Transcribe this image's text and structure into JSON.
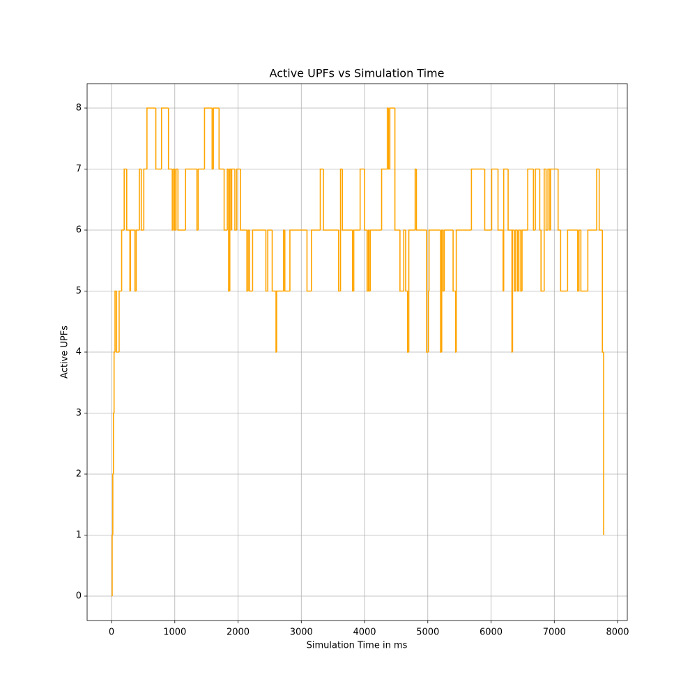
{
  "chart_data": {
    "type": "line",
    "step": "post",
    "title": "Active UPFs vs Simulation Time",
    "x_label": "Simulation Time in ms",
    "y_label": "Active UPFs",
    "x": [
      0,
      10,
      20,
      30,
      40,
      55,
      80,
      120,
      160,
      200,
      240,
      290,
      300,
      370,
      390,
      440,
      470,
      510,
      560,
      700,
      790,
      900,
      960,
      980,
      1000,
      1020,
      1050,
      1170,
      1350,
      1370,
      1470,
      1590,
      1610,
      1700,
      1780,
      1830,
      1850,
      1870,
      1890,
      1900,
      1950,
      1980,
      2040,
      2140,
      2160,
      2180,
      2230,
      2440,
      2470,
      2540,
      2600,
      2610,
      2720,
      2740,
      2820,
      3090,
      3160,
      3300,
      3350,
      3590,
      3620,
      3650,
      3810,
      3830,
      3930,
      4000,
      4040,
      4060,
      4070,
      4090,
      4270,
      4360,
      4380,
      4400,
      4480,
      4560,
      4620,
      4650,
      4680,
      4700,
      4800,
      4820,
      4980,
      5010,
      5020,
      5200,
      5220,
      5240,
      5260,
      5400,
      5440,
      5450,
      5690,
      5900,
      6010,
      6110,
      6190,
      6200,
      6270,
      6330,
      6340,
      6370,
      6390,
      6420,
      6440,
      6470,
      6490,
      6580,
      6670,
      6700,
      6770,
      6790,
      6840,
      6870,
      6900,
      6930,
      6940,
      7060,
      7100,
      7210,
      7370,
      7390,
      7420,
      7530,
      7670,
      7710,
      7760,
      7780
    ],
    "series": [
      {
        "name": "Active UPFs",
        "color": "orange",
        "values": [
          0,
          1,
          2,
          3,
          4,
          5,
          4,
          5,
          6,
          7,
          6,
          5,
          6,
          5,
          6,
          7,
          6,
          7,
          8,
          7,
          8,
          7,
          6,
          7,
          6,
          7,
          6,
          7,
          6,
          7,
          8,
          7,
          8,
          7,
          6,
          7,
          5,
          7,
          6,
          7,
          6,
          7,
          6,
          5,
          6,
          5,
          6,
          5,
          6,
          5,
          4,
          5,
          6,
          5,
          6,
          5,
          6,
          7,
          6,
          5,
          7,
          6,
          5,
          6,
          7,
          6,
          5,
          6,
          5,
          6,
          7,
          8,
          7,
          8,
          6,
          5,
          6,
          5,
          4,
          6,
          7,
          6,
          4,
          5,
          6,
          4,
          6,
          5,
          6,
          5,
          4,
          6,
          7,
          6,
          7,
          6,
          5,
          7,
          6,
          4,
          6,
          5,
          6,
          5,
          6,
          5,
          6,
          7,
          6,
          7,
          6,
          5,
          7,
          6,
          7,
          6,
          7,
          6,
          5,
          6,
          5,
          6,
          5,
          6,
          7,
          6,
          4,
          1
        ]
      }
    ],
    "xlim": [
      -386,
      8154
    ],
    "ylim": [
      -0.4,
      8.4
    ],
    "xticks": [
      0,
      1000,
      2000,
      3000,
      4000,
      5000,
      6000,
      7000,
      8000
    ],
    "yticks": [
      0,
      1,
      2,
      3,
      4,
      5,
      6,
      7,
      8
    ],
    "grid": true
  }
}
